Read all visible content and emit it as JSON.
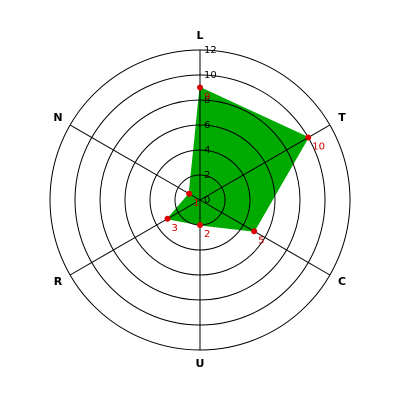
{
  "chart_data": {
    "type": "radar",
    "categories": [
      "L",
      "T",
      "C",
      "U",
      "R",
      "N"
    ],
    "values": [
      9,
      10,
      5,
      2,
      3,
      1
    ],
    "color": "#00aa00",
    "marker_color": "#dd0000",
    "label_color": "#cc0000",
    "ylim": [
      0,
      12
    ],
    "yticks": [
      0,
      2,
      4,
      6,
      8,
      10,
      12
    ]
  }
}
